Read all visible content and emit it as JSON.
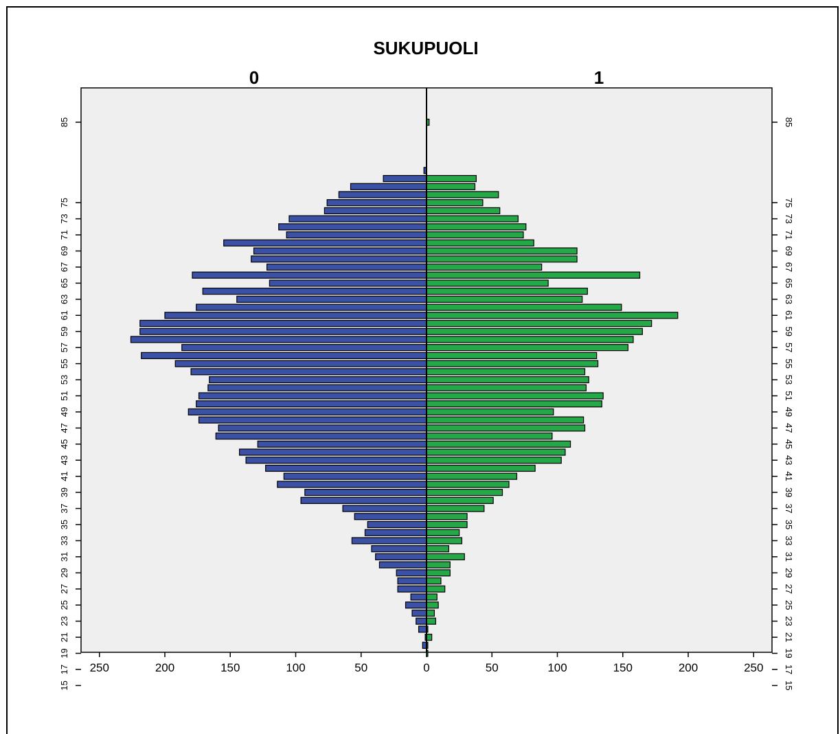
{
  "chart_data": {
    "type": "bar",
    "orientation": "horizontal",
    "layout": "population-pyramid",
    "title": "SUKUPUOLI",
    "panels": [
      "0",
      "1"
    ],
    "colors": {
      "0": "#3a51a6",
      "1": "#25a847",
      "background": "#efefef"
    },
    "xlim": [
      0,
      250
    ],
    "xticks_left": [
      "250",
      "200",
      "150",
      "100",
      "50",
      "0"
    ],
    "xticks_right": [
      "50",
      "100",
      "150",
      "200",
      "250"
    ],
    "ages": [
      85,
      84,
      83,
      82,
      81,
      80,
      79,
      78,
      77,
      76,
      75,
      74,
      73,
      72,
      71,
      70,
      69,
      68,
      67,
      66,
      65,
      64,
      63,
      62,
      61,
      60,
      59,
      58,
      57,
      56,
      55,
      54,
      53,
      52,
      51,
      50,
      49,
      48,
      47,
      46,
      45,
      44,
      43,
      42,
      41,
      40,
      39,
      38,
      37,
      36,
      35,
      34,
      33,
      32,
      31,
      30,
      29,
      28,
      27,
      26,
      25,
      24,
      23,
      22,
      21,
      20,
      19,
      18,
      17,
      16,
      15
    ],
    "age_labels": [
      "85",
      "75",
      "73",
      "71",
      "69",
      "67",
      "65",
      "63",
      "61",
      "59",
      "57",
      "55",
      "53",
      "51",
      "49",
      "47",
      "45",
      "43",
      "41",
      "39",
      "37",
      "35",
      "33",
      "31",
      "29",
      "27",
      "25",
      "23",
      "21",
      "19",
      "17",
      "15"
    ],
    "series": [
      {
        "name": "0",
        "values": [
          0,
          0,
          0,
          0,
          0,
          0,
          2,
          33,
          58,
          67,
          76,
          78,
          105,
          113,
          107,
          155,
          132,
          134,
          122,
          179,
          120,
          171,
          145,
          176,
          200,
          219,
          219,
          226,
          187,
          218,
          192,
          180,
          166,
          167,
          174,
          176,
          182,
          174,
          159,
          161,
          129,
          143,
          138,
          123,
          109,
          114,
          93,
          96,
          64,
          55,
          45,
          47,
          57,
          42,
          39,
          36,
          23,
          22,
          22,
          12,
          16,
          11,
          8,
          6,
          1,
          3,
          0,
          0,
          0,
          0,
          0
        ]
      },
      {
        "name": "1",
        "values": [
          2,
          0,
          0,
          0,
          0,
          0,
          0,
          38,
          37,
          55,
          43,
          56,
          70,
          76,
          74,
          82,
          115,
          115,
          88,
          163,
          93,
          123,
          119,
          149,
          192,
          172,
          165,
          158,
          154,
          130,
          131,
          121,
          124,
          122,
          135,
          134,
          97,
          120,
          121,
          96,
          110,
          106,
          103,
          83,
          69,
          63,
          58,
          51,
          44,
          31,
          31,
          25,
          27,
          17,
          29,
          18,
          18,
          11,
          14,
          8,
          9,
          6,
          7,
          1,
          4,
          1,
          1,
          0,
          0,
          0,
          0
        ]
      }
    ]
  }
}
